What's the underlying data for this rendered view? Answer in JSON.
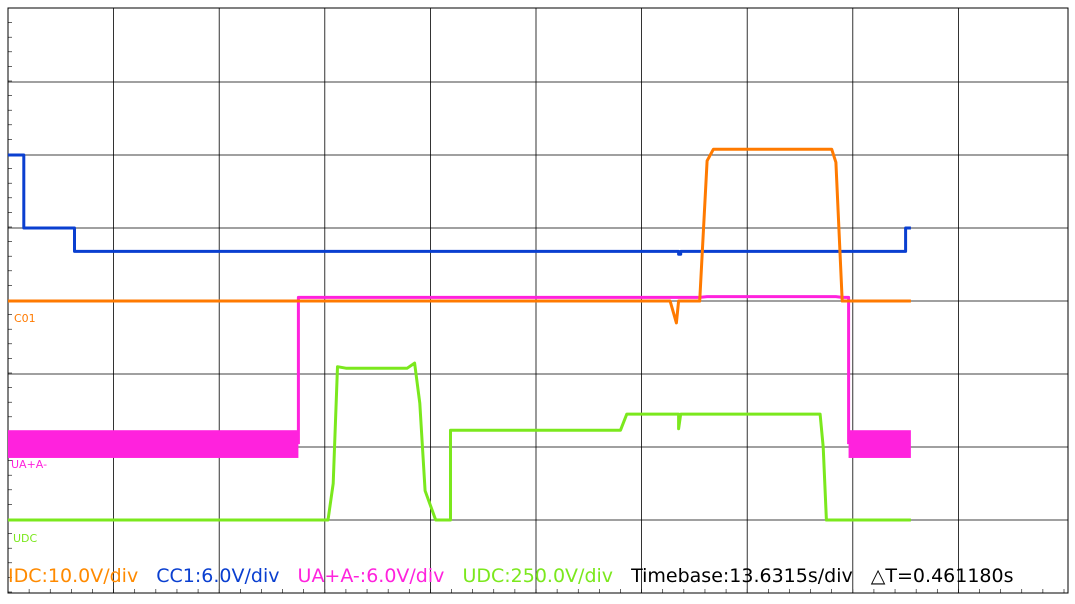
{
  "chart_data": {
    "type": "line",
    "title": "",
    "grid": true,
    "x_unit": "s",
    "x_per_division": 13.6315,
    "x_divisions": 10,
    "series": [
      {
        "name": "CC1",
        "color": "#0a3fd0",
        "label_short": "",
        "scale_v_per_div": 6.0,
        "points": [
          [
            0.0,
            2.0
          ],
          [
            0.15,
            2.0
          ],
          [
            0.15,
            1.0
          ],
          [
            0.63,
            1.0
          ],
          [
            0.63,
            0.68
          ],
          [
            6.35,
            0.68
          ],
          [
            6.35,
            0.64
          ],
          [
            6.37,
            0.64
          ],
          [
            6.37,
            0.68
          ],
          [
            8.5,
            0.68
          ],
          [
            8.5,
            1.0
          ],
          [
            8.55,
            1.0
          ]
        ]
      },
      {
        "name": "IDC",
        "color": "#ff7a00",
        "label_short": "C01",
        "scale_v_per_div": 10.0,
        "points": [
          [
            0.0,
            0.0
          ],
          [
            6.27,
            0.0
          ],
          [
            6.33,
            -0.3
          ],
          [
            6.35,
            0.0
          ],
          [
            6.55,
            0.0
          ],
          [
            6.62,
            1.92
          ],
          [
            6.68,
            2.08
          ],
          [
            7.8,
            2.08
          ],
          [
            7.84,
            1.9
          ],
          [
            7.9,
            0.0
          ],
          [
            8.55,
            0.0
          ]
        ]
      },
      {
        "name": "UA+A-",
        "color": "#ff22dd",
        "label_short": "UA+A-",
        "scale_v_per_div": 6.0,
        "band_until": 2.75,
        "band_from": 7.96,
        "band_low": -2.15,
        "band_high": -1.77,
        "points": [
          [
            2.75,
            -1.96
          ],
          [
            2.75,
            0.05
          ],
          [
            6.55,
            0.05
          ],
          [
            6.62,
            0.06
          ],
          [
            7.84,
            0.06
          ],
          [
            7.9,
            0.05
          ],
          [
            7.96,
            0.05
          ],
          [
            7.96,
            -1.96
          ]
        ]
      },
      {
        "name": "UDC",
        "color": "#7be81d",
        "label_short": "UDC",
        "scale_v_per_div": 250.0,
        "points": [
          [
            0.0,
            -3.0
          ],
          [
            3.03,
            -3.0
          ],
          [
            3.08,
            -2.5
          ],
          [
            3.12,
            -0.9
          ],
          [
            3.2,
            -0.92
          ],
          [
            3.78,
            -0.92
          ],
          [
            3.85,
            -0.85
          ],
          [
            3.9,
            -1.4
          ],
          [
            3.95,
            -2.6
          ],
          [
            4.05,
            -3.0
          ],
          [
            4.19,
            -3.0
          ],
          [
            4.19,
            -1.77
          ],
          [
            5.8,
            -1.77
          ],
          [
            5.86,
            -1.55
          ],
          [
            6.35,
            -1.55
          ],
          [
            6.35,
            -1.75
          ],
          [
            6.37,
            -1.55
          ],
          [
            7.69,
            -1.55
          ],
          [
            7.72,
            -2.0
          ],
          [
            7.75,
            -3.0
          ],
          [
            8.55,
            -3.0
          ]
        ]
      }
    ],
    "legend": [
      {
        "text": "IDC:10.0V/div",
        "color": "#ff8a00"
      },
      {
        "text": "CC1:6.0V/div",
        "color": "#0a3fd0"
      },
      {
        "text": "UA+A-:6.0V/div",
        "color": "#ff22dd"
      },
      {
        "text": "UDC:250.0V/div",
        "color": "#7be81d"
      },
      {
        "text": "Timebase:13.6315s/div",
        "color": "#000000"
      },
      {
        "text": "△T=0.461180s",
        "color": "#000000"
      }
    ]
  }
}
